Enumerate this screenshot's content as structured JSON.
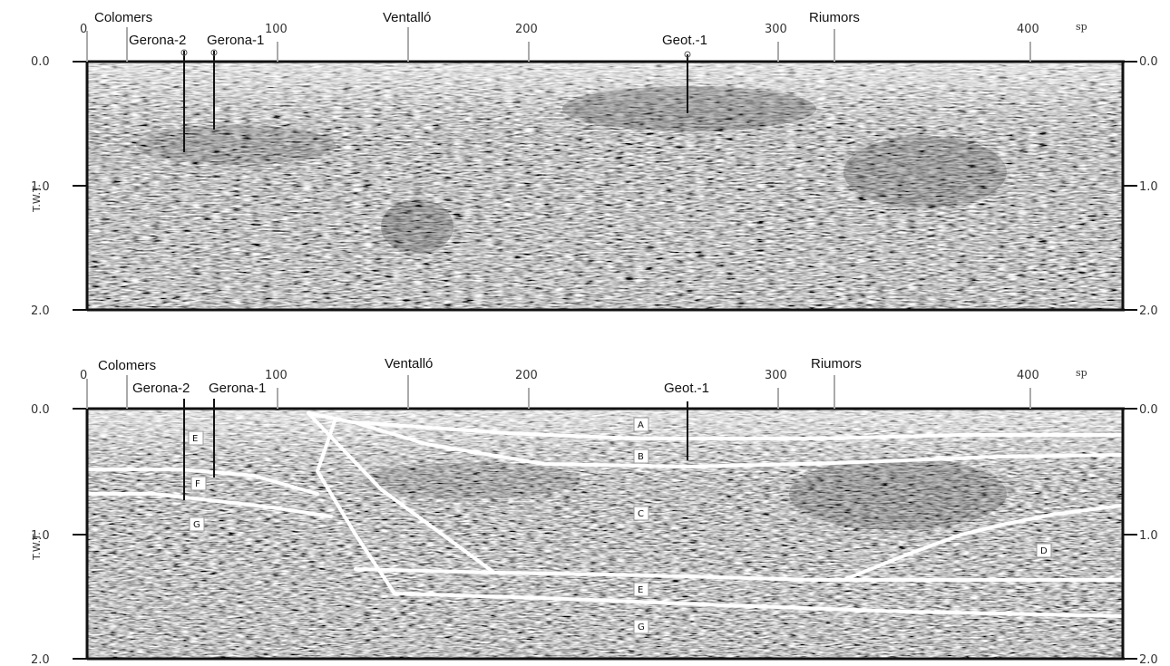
{
  "top_section": {
    "x_ticks": [
      "0",
      "100",
      "200",
      "300",
      "400"
    ],
    "x_unit": "sp",
    "y_ticks_left": [
      "0.0",
      "1.0",
      "2.0"
    ],
    "y_ticks_right": [
      "0.0",
      "1.0",
      "2.0"
    ],
    "y_axis_title": "T.W.T.",
    "wells": {
      "colomers": "Colomers",
      "gerona2": "Gerona-2",
      "gerona1": "Gerona-1",
      "ventallo": "Ventalló",
      "geot1": "Geot.-1",
      "riumors": "Riumors"
    }
  },
  "bottom_section": {
    "x_ticks": [
      "0",
      "100",
      "200",
      "300",
      "400"
    ],
    "x_unit": "sp",
    "y_ticks_left": [
      "0.0",
      "1.0",
      "2.0"
    ],
    "y_ticks_right": [
      "0.0",
      "1.0",
      "2.0"
    ],
    "y_axis_title": "T.W.T.",
    "wells": {
      "colomers": "Colomers",
      "gerona2": "Gerona-2",
      "gerona1": "Gerona-1",
      "ventallo": "Ventalló",
      "geot1": "Geot.-1",
      "riumors": "Riumors"
    },
    "units": {
      "a": "A",
      "b": "B",
      "c_main": "C",
      "d": "D",
      "e_left": "E",
      "e_main": "E",
      "f_left": "F",
      "g_left": "G",
      "g_main": "G"
    }
  },
  "colors": {
    "seismic_mid": "#7a7a7a",
    "seismic_dark": "#4a4a4a",
    "seismic_light": "#d8d8d8",
    "interpretation_line": "#ffffff",
    "frame": "#111111"
  }
}
